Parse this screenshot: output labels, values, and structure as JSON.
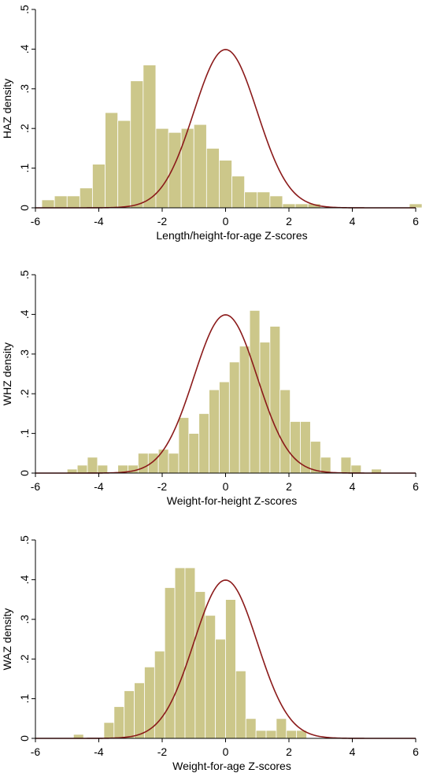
{
  "colors": {
    "bar_fill": "#CCC78A",
    "curve": "#8B1A1A"
  },
  "chart_data": [
    {
      "type": "bar",
      "subtype": "histogram-with-normal-density",
      "xlabel": "Length/height-for-age Z-scores",
      "ylabel": "HAZ density",
      "xlim": [
        -6,
        6
      ],
      "ylim": [
        0,
        0.5
      ],
      "xticks": [
        "-6",
        "-4",
        "-2",
        "0",
        "2",
        "4",
        "6"
      ],
      "yticks": [
        "0",
        ".1",
        ".2",
        ".3",
        ".4",
        ".5"
      ],
      "bin_start": -5.8,
      "bin_width": 0.4,
      "values": [
        0.02,
        0.03,
        0.03,
        0.05,
        0.11,
        0.24,
        0.22,
        0.32,
        0.36,
        0.2,
        0.19,
        0.2,
        0.21,
        0.15,
        0.12,
        0.08,
        0.04,
        0.04,
        0.03,
        0.01,
        0.01,
        0.01,
        0.0,
        0.0,
        0.0,
        0.0,
        0.0,
        0.0,
        0.0,
        0.01,
        0.0,
        0.01
      ],
      "overlay": "standard normal density (mean 0, sd 1)"
    },
    {
      "type": "bar",
      "subtype": "histogram-with-normal-density",
      "xlabel": "Weight-for-height Z-scores",
      "ylabel": "WHZ density",
      "xlim": [
        -6,
        6
      ],
      "ylim": [
        0,
        0.5
      ],
      "xticks": [
        "-6",
        "-4",
        "-2",
        "0",
        "2",
        "4",
        "6"
      ],
      "yticks": [
        "0",
        ".1",
        ".2",
        ".3",
        ".4",
        ".5"
      ],
      "bin_start": -5.0,
      "bin_width": 0.32,
      "values": [
        0.01,
        0.02,
        0.04,
        0.02,
        0.0,
        0.02,
        0.02,
        0.05,
        0.05,
        0.06,
        0.05,
        0.14,
        0.1,
        0.15,
        0.21,
        0.23,
        0.28,
        0.32,
        0.41,
        0.33,
        0.37,
        0.21,
        0.13,
        0.13,
        0.08,
        0.04,
        0.0,
        0.04,
        0.02,
        0.0,
        0.01,
        0.0,
        0.0,
        0.0,
        0.0,
        0.01
      ],
      "overlay": "standard normal density (mean 0, sd 1)"
    },
    {
      "type": "bar",
      "subtype": "histogram-with-normal-density",
      "xlabel": "Weight-for-age Z-scores",
      "ylabel": "WAZ density",
      "xlim": [
        -6,
        6
      ],
      "ylim": [
        0,
        0.5
      ],
      "xticks": [
        "-6",
        "-4",
        "-2",
        "0",
        "2",
        "4",
        "6"
      ],
      "yticks": [
        "0",
        ".1",
        ".2",
        ".3",
        ".4",
        ".5"
      ],
      "bin_start": -4.8,
      "bin_width": 0.32,
      "values": [
        0.01,
        0.0,
        0.0,
        0.04,
        0.08,
        0.12,
        0.14,
        0.18,
        0.22,
        0.38,
        0.43,
        0.43,
        0.37,
        0.31,
        0.25,
        0.35,
        0.17,
        0.05,
        0.02,
        0.02,
        0.05,
        0.02,
        0.02
      ],
      "overlay": "standard normal density (mean 0, sd 1)"
    }
  ]
}
